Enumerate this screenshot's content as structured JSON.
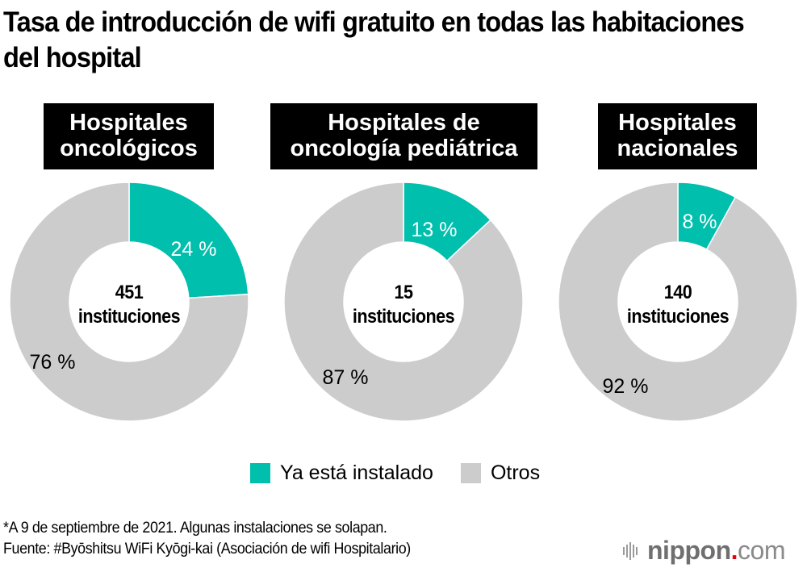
{
  "title": "Tasa de introducción de wifi gratuito en todas las habitaciones del hospital",
  "colors": {
    "installed": "#00bfad",
    "others": "#cccccc",
    "label_bg": "#000000"
  },
  "chart_data": {
    "type": "pie",
    "title": "Tasa de introducción de wifi gratuito en todas las habitaciones del hospital",
    "legend": [
      "Ya está instalado",
      "Otros"
    ],
    "legend_position": "bottom",
    "charts": [
      {
        "label": "Hospitales oncológicos",
        "label_lines": [
          "Hospitales",
          "oncológicos"
        ],
        "total_number": "451",
        "total_unit": "instituciones",
        "slices": [
          {
            "name": "Ya está instalado",
            "value": 24,
            "label": "24 %"
          },
          {
            "name": "Otros",
            "value": 76,
            "label": "76 %"
          }
        ]
      },
      {
        "label": "Hospitales de oncología pediátrica",
        "label_lines": [
          "Hospitales de",
          "oncología pediátrica"
        ],
        "total_number": "15",
        "total_unit": "instituciones",
        "slices": [
          {
            "name": "Ya está instalado",
            "value": 13,
            "label": "13 %"
          },
          {
            "name": "Otros",
            "value": 87,
            "label": "87 %"
          }
        ]
      },
      {
        "label": "Hospitales nacionales",
        "label_lines": [
          "Hospitales",
          "nacionales"
        ],
        "total_number": "140",
        "total_unit": "instituciones",
        "slices": [
          {
            "name": "Ya está instalado",
            "value": 8,
            "label": "8 %"
          },
          {
            "name": "Otros",
            "value": 92,
            "label": "92 %"
          }
        ]
      }
    ]
  },
  "legend": {
    "installed": "Ya está instalado",
    "others": "Otros"
  },
  "footnote": {
    "line1": "*A 9 de septiembre de 2021. Algunas instalaciones se solapan.",
    "line2": "Fuente: #Byōshitsu WiFi Kyōgi-kai (Asociación de wifi Hospitalario)"
  },
  "logo": {
    "name": "nippon",
    "dot": ".",
    "tld": "com"
  }
}
